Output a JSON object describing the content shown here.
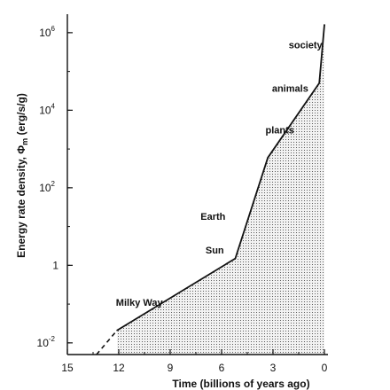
{
  "chart_data": {
    "type": "area",
    "title": "",
    "xlabel": "Time (billions of years ago)",
    "ylabel": "Energy rate density, Φm (erg/s/g)",
    "ylabel_parts": {
      "main": "Energy rate density, Φ",
      "sub": "m",
      "unit": " (erg/s/g)"
    },
    "x_axis": {
      "reversed": true,
      "range": [
        15,
        0
      ],
      "ticks": [
        15,
        12,
        9,
        6,
        3,
        0
      ]
    },
    "y_axis": {
      "scale": "log",
      "range": [
        0.005,
        3000000
      ],
      "ticks": [
        {
          "value": 0.01,
          "base": "10",
          "exp": "-2"
        },
        {
          "value": 1,
          "base": "1",
          "exp": ""
        },
        {
          "value": 100,
          "base": "10",
          "exp": "2"
        },
        {
          "value": 10000,
          "base": "10",
          "exp": "4"
        },
        {
          "value": 1000000,
          "base": "10",
          "exp": "6"
        }
      ]
    },
    "grid": false,
    "series": [
      {
        "name": "",
        "style": "dashed",
        "points": [
          {
            "x": 13.3,
            "y": 0.005
          },
          {
            "x": 12.1,
            "y": 0.021
          }
        ]
      },
      {
        "name": "",
        "style": "solid-filled",
        "points": [
          {
            "x": 12.1,
            "y": 0.021
          },
          {
            "x": 5.2,
            "y": 1.5
          },
          {
            "x": 3.3,
            "y": 600
          },
          {
            "x": 0.3,
            "y": 50000
          },
          {
            "x": 0.0,
            "y": 1600000
          }
        ]
      }
    ],
    "annotations": [
      {
        "text": "Milky Way",
        "x": 10.8,
        "y": 0.09
      },
      {
        "text": "Sun",
        "x": 6.4,
        "y": 2.0
      },
      {
        "text": "Earth",
        "x": 6.5,
        "y": 15
      },
      {
        "text": "plants",
        "x": 2.6,
        "y": 2500
      },
      {
        "text": "animals",
        "x": 2.0,
        "y": 30000
      },
      {
        "text": "society",
        "x": 1.1,
        "y": 400000
      }
    ],
    "colors": {
      "line": "#111111",
      "fill_dots": "#555555"
    }
  }
}
